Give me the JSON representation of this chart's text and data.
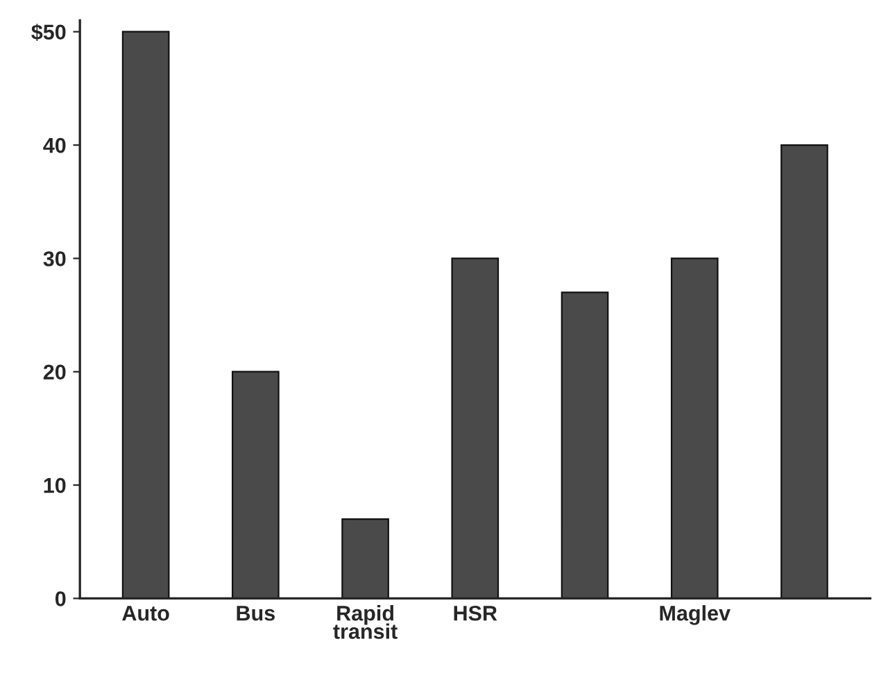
{
  "chart_data": {
    "type": "bar",
    "categories": [
      "Auto",
      "Bus",
      "Rapid\ntransit",
      "HSR",
      null,
      "Maglev",
      null
    ],
    "values": [
      50,
      20,
      7,
      30,
      27,
      30,
      40
    ],
    "color": "#4a4a4a",
    "ylim": [
      0,
      51
    ],
    "yticks": [
      0,
      10,
      20,
      30,
      40,
      {
        "value": 50,
        "label": "$50"
      }
    ],
    "grid": false
  }
}
